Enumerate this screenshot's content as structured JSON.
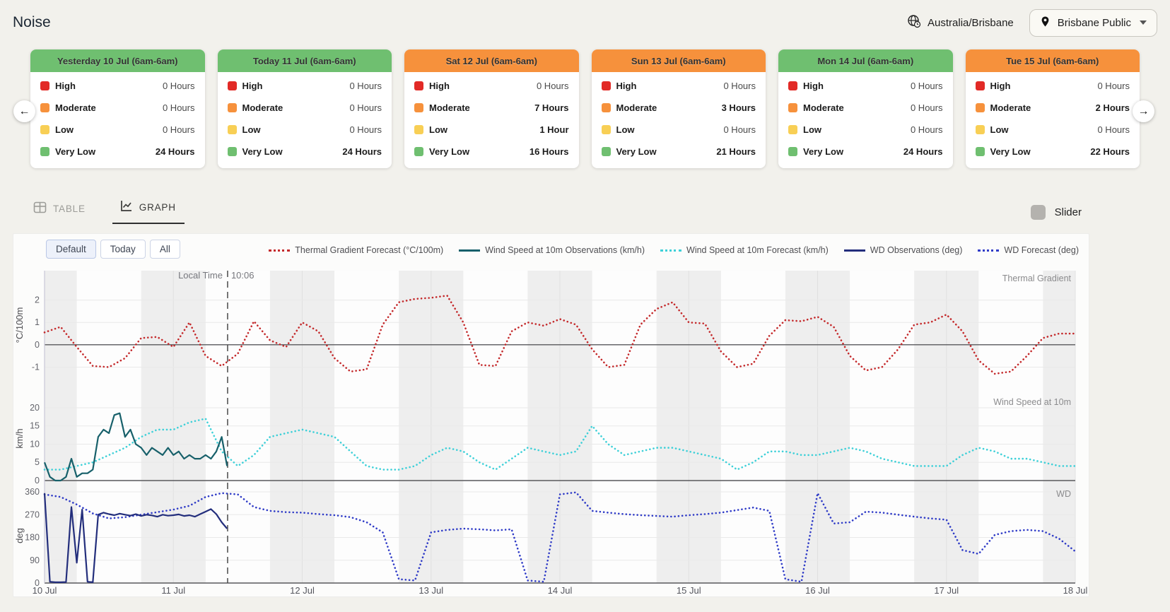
{
  "page": {
    "title": "Noise"
  },
  "header": {
    "timezone": "Australia/Brisbane",
    "station": "Brisbane Public"
  },
  "severity_labels": [
    "High",
    "Moderate",
    "Low",
    "Very Low"
  ],
  "colors": {
    "severity": [
      "#e22a26",
      "#f6913c",
      "#f8cf55",
      "#6fbf70"
    ],
    "header": {
      "green": "#6fbf70",
      "orange": "#f6913c"
    },
    "page_background": "#f2f1ec"
  },
  "cards": [
    {
      "title": "Yesterday 10 Jul (6am-6am)",
      "header": "green",
      "hours": [
        "0 Hours",
        "0 Hours",
        "0 Hours",
        "24 Hours"
      ],
      "bold": [
        false,
        false,
        false,
        true
      ]
    },
    {
      "title": "Today 11 Jul (6am-6am)",
      "header": "green",
      "hours": [
        "0 Hours",
        "0 Hours",
        "0 Hours",
        "24 Hours"
      ],
      "bold": [
        false,
        false,
        false,
        true
      ]
    },
    {
      "title": "Sat 12 Jul (6am-6am)",
      "header": "orange",
      "hours": [
        "0 Hours",
        "7 Hours",
        "1 Hour",
        "16 Hours"
      ],
      "bold": [
        false,
        true,
        true,
        true
      ]
    },
    {
      "title": "Sun 13 Jul (6am-6am)",
      "header": "orange",
      "hours": [
        "0 Hours",
        "3 Hours",
        "0 Hours",
        "21 Hours"
      ],
      "bold": [
        false,
        true,
        false,
        true
      ]
    },
    {
      "title": "Mon 14 Jul (6am-6am)",
      "header": "green",
      "hours": [
        "0 Hours",
        "0 Hours",
        "0 Hours",
        "24 Hours"
      ],
      "bold": [
        false,
        false,
        false,
        true
      ]
    },
    {
      "title": "Tue 15 Jul (6am-6am)",
      "header": "orange",
      "hours": [
        "0 Hours",
        "2 Hours",
        "0 Hours",
        "22 Hours"
      ],
      "bold": [
        false,
        true,
        false,
        true
      ]
    }
  ],
  "tabs": [
    {
      "label": "TABLE",
      "active": false
    },
    {
      "label": "GRAPH",
      "active": true
    }
  ],
  "slider": {
    "label": "Slider",
    "checked": false
  },
  "chart": {
    "range_buttons": [
      "Default",
      "Today",
      "All"
    ],
    "active_range": "Default",
    "legend": [
      {
        "label": "Thermal Gradient Forecast (°C/100m)",
        "color": "#c4292b",
        "style": "dotted"
      },
      {
        "label": "Wind Speed at 10m Observations (km/h)",
        "color": "#17606a",
        "style": "solid"
      },
      {
        "label": "Wind Speed at 10m Forecast (km/h)",
        "color": "#3ed0d8",
        "style": "dotted"
      },
      {
        "label": "WD Observations (deg)",
        "color": "#232e7c",
        "style": "solid"
      },
      {
        "label": "WD Forecast (deg)",
        "color": "#2f3bc7",
        "style": "dotted"
      }
    ],
    "local_time": {
      "label": "Local Time",
      "time": "10:06",
      "hours_since_start": 34.1
    },
    "x_ticks": [
      "10 Jul",
      "11 Jul",
      "12 Jul",
      "13 Jul",
      "14 Jul",
      "15 Jul",
      "16 Jul",
      "17 Jul",
      "18 Jul"
    ],
    "subplots": [
      {
        "title": "Thermal Gradient",
        "axis_label": "°C/100m",
        "yticks": [
          2,
          1,
          0,
          -1
        ]
      },
      {
        "title": "Wind Speed at 10m",
        "axis_label": "km/h",
        "yticks": [
          20,
          15,
          10,
          5,
          0
        ]
      },
      {
        "title": "WD",
        "axis_label": "deg",
        "yticks": [
          360,
          270,
          180,
          90,
          0
        ]
      }
    ]
  },
  "chart_data": {
    "type": "line",
    "x_unit": "hours since 10 Jul 00:00 (x axis spans 10 Jul to 18 Jul)",
    "x_range": [
      0,
      192
    ],
    "series": [
      {
        "name": "Thermal Gradient Forecast (°C/100m)",
        "subplot": "Thermal Gradient",
        "subplot_index": 0,
        "style": "dotted",
        "color": "#c4292b",
        "start_hour": 0,
        "step_hours": 3,
        "values": [
          0.55,
          0.8,
          -0.1,
          -0.95,
          -1.0,
          -0.6,
          0.3,
          0.35,
          -0.1,
          1.0,
          -0.5,
          -0.95,
          -0.4,
          1.05,
          0.2,
          -0.1,
          1.0,
          0.6,
          -0.6,
          -1.2,
          -1.1,
          0.9,
          1.9,
          2.05,
          2.1,
          2.2,
          1.0,
          -0.9,
          -0.95,
          0.6,
          1.0,
          0.85,
          1.15,
          0.9,
          -0.2,
          -1.0,
          -0.9,
          0.9,
          1.6,
          1.9,
          1.0,
          0.95,
          -0.3,
          -1.0,
          -0.85,
          0.4,
          1.1,
          1.05,
          1.25,
          0.8,
          -0.5,
          -1.15,
          -1.0,
          -0.2,
          0.9,
          1.0,
          1.35,
          0.6,
          -0.7,
          -1.3,
          -1.2,
          -0.5,
          0.3,
          0.5,
          0.5
        ]
      },
      {
        "name": "Wind Speed at 10m Forecast (km/h)",
        "subplot": "Wind Speed at 10m",
        "subplot_index": 1,
        "style": "dotted",
        "color": "#3ed0d8",
        "start_hour": 0,
        "step_hours": 3,
        "values": [
          3,
          3,
          4,
          5,
          7,
          9,
          12,
          14,
          14,
          16,
          17,
          8,
          4,
          7,
          12,
          13,
          14,
          13,
          12,
          8,
          4,
          3,
          3,
          4,
          7,
          9,
          8,
          5,
          3,
          6,
          9,
          8,
          7,
          8,
          15,
          10,
          7,
          8,
          9,
          9,
          8,
          7,
          6,
          3,
          5,
          8,
          8,
          7,
          7,
          8,
          9,
          8,
          6,
          5,
          4,
          4,
          4,
          7,
          9,
          8,
          6,
          6,
          5,
          4,
          4
        ]
      },
      {
        "name": "Wind Speed at 10m Observations (km/h)",
        "subplot": "Wind Speed at 10m",
        "subplot_index": 1,
        "style": "solid",
        "color": "#17606a",
        "start_hour": 0,
        "step_hours": 1,
        "values": [
          5,
          1,
          0,
          0,
          1,
          6,
          1,
          2,
          2,
          3,
          12,
          14,
          13,
          18,
          18.5,
          12,
          14,
          10,
          9,
          7,
          9,
          8,
          7,
          9,
          7,
          8,
          6,
          7,
          6,
          6,
          7,
          6,
          8,
          12,
          4
        ]
      },
      {
        "name": "WD Forecast (deg)",
        "subplot": "WD",
        "subplot_index": 2,
        "style": "dotted",
        "color": "#2f3bc7",
        "start_hour": 0,
        "step_hours": 3,
        "values": [
          350,
          340,
          310,
          275,
          255,
          260,
          270,
          280,
          290,
          305,
          340,
          355,
          350,
          300,
          285,
          280,
          278,
          272,
          268,
          260,
          240,
          200,
          15,
          10,
          200,
          210,
          215,
          212,
          208,
          212,
          10,
          5,
          350,
          358,
          285,
          278,
          272,
          268,
          265,
          262,
          268,
          272,
          278,
          288,
          298,
          285,
          15,
          5,
          355,
          235,
          240,
          282,
          278,
          270,
          262,
          255,
          250,
          130,
          115,
          190,
          205,
          210,
          205,
          175,
          125
        ]
      },
      {
        "name": "WD Observations (deg)",
        "subplot": "WD",
        "subplot_index": 2,
        "style": "solid",
        "color": "#232e7c",
        "start_hour": 0,
        "step_hours": 1,
        "values": [
          355,
          5,
          3,
          3,
          4,
          300,
          80,
          290,
          5,
          3,
          270,
          278,
          272,
          268,
          274,
          270,
          266,
          272,
          265,
          270,
          267,
          262,
          270,
          266,
          268,
          271,
          265,
          268,
          262,
          272,
          282,
          292,
          272,
          240,
          215
        ]
      }
    ]
  }
}
